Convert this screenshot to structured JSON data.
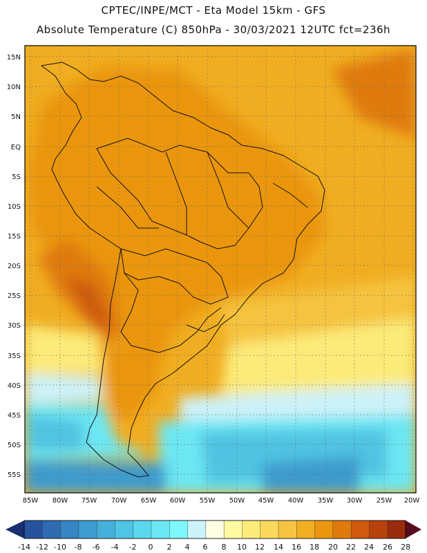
{
  "header": {
    "line1": "CPTEC/INPE/MCT -  Eta Model 15km - GFS",
    "line2": "Absolute Temperature (C) 850hPa - 30/03/2021 12UTC fct=236h"
  },
  "map": {
    "lat_labels": [
      "15N",
      "10N",
      "5N",
      "EQ",
      "5S",
      "10S",
      "15S",
      "20S",
      "25S",
      "30S",
      "35S",
      "40S",
      "45S",
      "50S",
      "55S"
    ],
    "lon_labels": [
      "85W",
      "80W",
      "75W",
      "70W",
      "65W",
      "60W",
      "55W",
      "50W",
      "45W",
      "40W",
      "35W",
      "30W",
      "25W",
      "20W"
    ],
    "lat_range": [
      17,
      -58
    ],
    "lon_range": [
      -86,
      -20
    ],
    "regions": [
      {
        "name": "north-atlantic-warm",
        "value": 20
      },
      {
        "name": "northeast-atlantic-hot",
        "value": 22
      },
      {
        "name": "amazon-warm",
        "value": 20
      },
      {
        "name": "central-brazil-warm",
        "value": 20
      },
      {
        "name": "atacama-hot",
        "value": 22
      },
      {
        "name": "atacama-core",
        "value": 24
      },
      {
        "name": "south-atlantic-mild",
        "value": 16
      },
      {
        "name": "subtropical-band",
        "value": 12
      },
      {
        "name": "cool-band",
        "value": 6
      },
      {
        "name": "southern-ocean-cold",
        "value": 2
      },
      {
        "name": "southern-ocean-colder",
        "value": -2
      },
      {
        "name": "southern-ocean-coldest",
        "value": -6
      },
      {
        "name": "patagonia-warm",
        "value": 20
      }
    ]
  },
  "colorbar": {
    "ticks": [
      "-14",
      "-12",
      "-10",
      "-8",
      "-6",
      "-4",
      "-2",
      "0",
      "2",
      "4",
      "6",
      "8",
      "10",
      "12",
      "14",
      "16",
      "18",
      "20",
      "22",
      "24",
      "26",
      "28"
    ],
    "colors": [
      "#1f3e88",
      "#27539e",
      "#2f6bb1",
      "#3684c2",
      "#3d9bcf",
      "#45b0da",
      "#4fc4e4",
      "#5bd7ee",
      "#6ce8f5",
      "#7ff8fd",
      "#cdf3fa",
      "#fffde4",
      "#fffaa1",
      "#fdec7a",
      "#fbd95d",
      "#f6c440",
      "#f1ae22",
      "#eb960e",
      "#e07a0c",
      "#cf5a0d",
      "#b8420c",
      "#9a2a0c",
      "#7a1a0a",
      "#5c0f0a"
    ],
    "left_arrow_color": "#1a2f70",
    "right_arrow_color": "#5a0a1e"
  }
}
